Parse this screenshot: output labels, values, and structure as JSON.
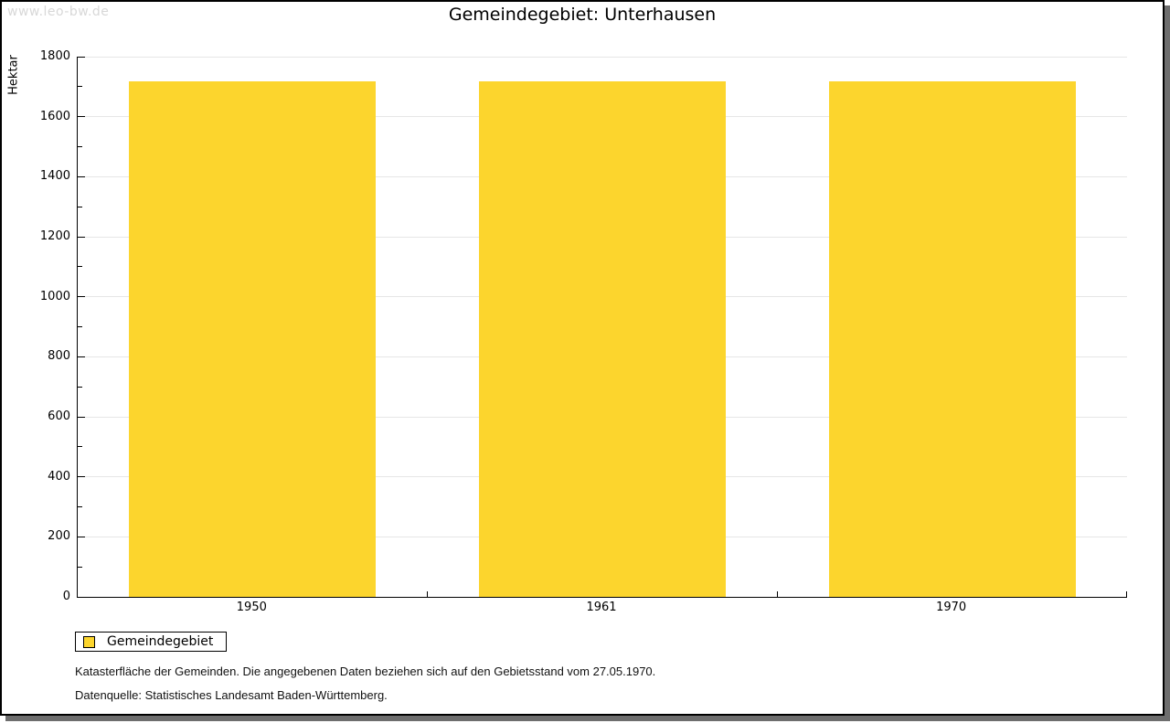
{
  "watermark": "www.leo-bw.de",
  "title": "Gemeindegebiet: Unterhausen",
  "chart_data": {
    "type": "bar",
    "title": "Gemeindegebiet: Unterhausen",
    "categories": [
      "1950",
      "1961",
      "1970"
    ],
    "series": [
      {
        "name": "Gemeindegebiet",
        "values": [
          1718,
          1718,
          1718
        ]
      }
    ],
    "xlabel": "",
    "ylabel": "Hektar",
    "ylim": [
      0,
      1800
    ],
    "ytick_major_step": 200,
    "ytick_minor_step": 100,
    "grid": "horizontal-major",
    "legend_position": "bottom-left",
    "bar_color": "#fcd52d"
  },
  "legend": {
    "label": "Gemeindegebiet",
    "swatch_color": "#fcd52d"
  },
  "footnotes": [
    "Katasterfläche der Gemeinden. Die angegebenen Daten beziehen sich auf den Gebietsstand vom 27.05.1970.",
    "Datenquelle: Statistisches Landesamt Baden-Württemberg."
  ],
  "colors": {
    "bar": "#fcd52d",
    "gridline": "#e6e6e6",
    "axis": "#000000",
    "shadow": "#6e6e6e",
    "watermark_text": "#d8d8d8"
  }
}
